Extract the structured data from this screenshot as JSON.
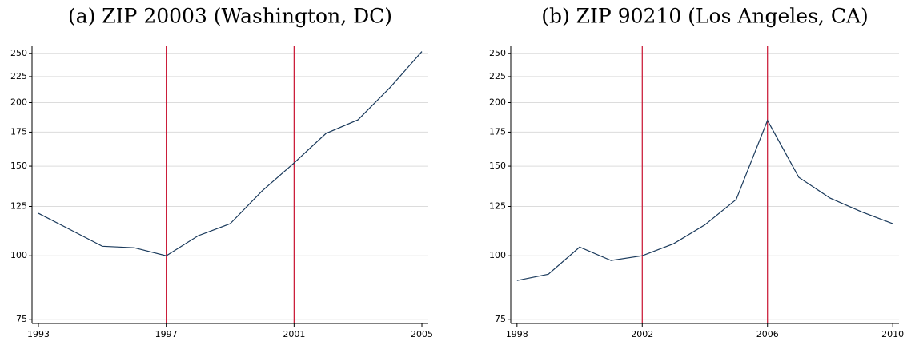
{
  "chart_data": [
    {
      "type": "line",
      "title": "(a) ZIP 20003 (Washington, DC)",
      "x": [
        1993,
        1994,
        1995,
        1996,
        1997,
        1998,
        1999,
        2000,
        2001,
        2002,
        2003,
        2004,
        2005
      ],
      "series": [
        {
          "color": "#1a3a5c",
          "values": [
            121.2,
            112.5,
            104.4,
            103.7,
            100,
            109.5,
            115.6,
            134.1,
            152.2,
            174,
            185,
            214,
            252
          ]
        }
      ],
      "xlim": [
        1992.8,
        2005.2
      ],
      "xticks": [
        1993,
        1997,
        2001,
        2005
      ],
      "ylim": [
        73.6,
        259
      ],
      "yticks": [
        75,
        100,
        125,
        150,
        175,
        200,
        225,
        250
      ],
      "yscale": "log",
      "grid": true,
      "vlines": [
        1997,
        2001
      ],
      "vline_color": "#c8102e"
    },
    {
      "type": "line",
      "title": "(b) ZIP 90210 (Los Angeles, CA)",
      "x": [
        1998,
        1999,
        2000,
        2001,
        2002,
        2003,
        2004,
        2005,
        2006,
        2007,
        2008,
        2009,
        2010
      ],
      "series": [
        {
          "color": "#1a3a5c",
          "values": [
            89.4,
            92,
            104,
            97.9,
            100,
            105.6,
            115,
            129,
            184.5,
            142.6,
            129.8,
            122,
            115.6
          ]
        }
      ],
      "xlim": [
        1997.8,
        2010.2
      ],
      "xticks": [
        1998,
        2002,
        2006,
        2010
      ],
      "ylim": [
        73.6,
        259
      ],
      "yticks": [
        75,
        100,
        125,
        150,
        175,
        200,
        225,
        250
      ],
      "yscale": "log",
      "grid": true,
      "vlines": [
        2002,
        2006
      ],
      "vline_color": "#c8102e"
    }
  ]
}
